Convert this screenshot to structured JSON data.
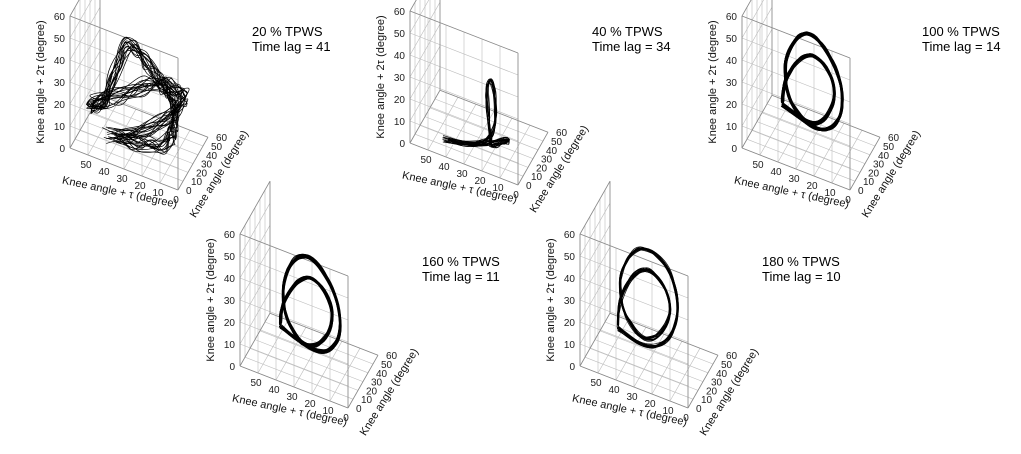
{
  "chart_data": [
    {
      "type": "line3d",
      "title": "20 % TPWS",
      "subtitle": "Time lag = 41",
      "xlabel": "Knee angle + τ (degree)",
      "ylabel": "Knee angle (degree)",
      "zlabel": "Knee angle + 2τ (degree)",
      "xlim": [
        0,
        60
      ],
      "ylim": [
        0,
        60
      ],
      "zlim": [
        0,
        60
      ],
      "xticks": [
        0,
        10,
        20,
        30,
        40,
        50
      ],
      "yticks": [
        0,
        10,
        20,
        30,
        40,
        50,
        60
      ],
      "zticks": [
        0,
        10,
        20,
        30,
        40,
        50,
        60
      ],
      "grid": true,
      "pattern": "irregular",
      "series": [
        {
          "x": [
            40,
            30,
            20,
            12,
            8,
            6,
            10,
            15,
            22,
            28,
            34,
            40,
            46,
            52,
            55,
            48,
            42,
            38,
            35,
            32,
            29,
            26,
            24,
            22,
            20,
            18,
            16,
            14,
            12,
            10,
            8,
            6,
            10,
            16,
            24,
            32,
            40
          ],
          "y": [
            5,
            8,
            14,
            20,
            28,
            35,
            42,
            48,
            52,
            54,
            52,
            46,
            38,
            28,
            18,
            10,
            6,
            5,
            8,
            14,
            22,
            30,
            38,
            44,
            48,
            52,
            50,
            44,
            36,
            26,
            16,
            8,
            4,
            3,
            4,
            5,
            5
          ],
          "z": [
            10,
            12,
            16,
            20,
            24,
            26,
            24,
            22,
            20,
            18,
            16,
            14,
            12,
            12,
            14,
            18,
            24,
            34,
            44,
            50,
            46,
            38,
            30,
            24,
            20,
            16,
            14,
            12,
            12,
            14,
            16,
            18,
            16,
            14,
            12,
            10,
            10
          ]
        }
      ]
    },
    {
      "type": "line3d",
      "title": "40 % TPWS",
      "subtitle": "Time lag = 34",
      "xlabel": "Knee angle + τ (degree)",
      "ylabel": "Knee angle (degree)",
      "zlabel": "Knee angle + 2τ (degree)",
      "xlim": [
        0,
        60
      ],
      "ylim": [
        0,
        60
      ],
      "zlim": [
        0,
        60
      ],
      "xticks": [
        0,
        10,
        20,
        30,
        40,
        50
      ],
      "yticks": [
        0,
        10,
        20,
        30,
        40,
        50,
        60
      ],
      "zticks": [
        0,
        10,
        20,
        30,
        40,
        50,
        60
      ],
      "grid": true,
      "pattern": "narrow",
      "series": [
        {
          "x": [
            42,
            36,
            30,
            24,
            20,
            18,
            17,
            18,
            20,
            23,
            26,
            24,
            22,
            20,
            19,
            18,
            16,
            14,
            12,
            10,
            12,
            16,
            22,
            30,
            38,
            42
          ],
          "y": [
            4,
            5,
            6,
            8,
            10,
            13,
            16,
            20,
            24,
            28,
            30,
            26,
            22,
            18,
            14,
            10,
            8,
            10,
            14,
            18,
            22,
            20,
            14,
            8,
            5,
            4
          ],
          "z": [
            6,
            6,
            7,
            8,
            10,
            12,
            16,
            22,
            28,
            30,
            24,
            16,
            10,
            8,
            7,
            8,
            9,
            10,
            10,
            9,
            8,
            7,
            6,
            6,
            6,
            6
          ]
        }
      ]
    },
    {
      "type": "line3d",
      "title": "100 % TPWS",
      "subtitle": "Time lag = 14",
      "xlabel": "Knee angle + τ (degree)",
      "ylabel": "Knee angle (degree)",
      "zlabel": "Knee angle + 2τ (degree)",
      "xlim": [
        0,
        60
      ],
      "ylim": [
        0,
        60
      ],
      "zlim": [
        0,
        60
      ],
      "xticks": [
        0,
        10,
        20,
        30,
        40,
        50
      ],
      "yticks": [
        0,
        10,
        20,
        30,
        40,
        50,
        60
      ],
      "zticks": [
        0,
        10,
        20,
        30,
        40,
        50,
        60
      ],
      "grid": true,
      "pattern": "loop",
      "series": [
        {
          "x": [
            40,
            30,
            22,
            16,
            12,
            10,
            12,
            18,
            26,
            34,
            40,
            44,
            46,
            44,
            40,
            34,
            28,
            22,
            18,
            16,
            18,
            24,
            32,
            38,
            42,
            44,
            42,
            40
          ],
          "y": [
            10,
            8,
            8,
            10,
            14,
            20,
            28,
            36,
            42,
            46,
            46,
            42,
            36,
            28,
            20,
            14,
            10,
            12,
            18,
            26,
            34,
            40,
            44,
            42,
            36,
            26,
            16,
            10
          ],
          "z": [
            22,
            20,
            18,
            18,
            20,
            24,
            30,
            36,
            40,
            42,
            40,
            36,
            30,
            26,
            22,
            20,
            18,
            18,
            20,
            24,
            28,
            32,
            34,
            32,
            28,
            24,
            22,
            22
          ]
        }
      ]
    },
    {
      "type": "line3d",
      "title": "160 % TPWS",
      "subtitle": "Time lag = 11",
      "xlabel": "Knee angle + τ (degree)",
      "ylabel": "Knee angle (degree)",
      "zlabel": "Knee angle + 2τ (degree)",
      "xlim": [
        0,
        60
      ],
      "ylim": [
        0,
        60
      ],
      "zlim": [
        0,
        60
      ],
      "xticks": [
        0,
        10,
        20,
        30,
        40,
        50
      ],
      "yticks": [
        0,
        10,
        20,
        30,
        40,
        50,
        60
      ],
      "zticks": [
        0,
        10,
        20,
        30,
        40,
        50,
        60
      ],
      "grid": true,
      "pattern": "loop",
      "series": [
        {
          "x": [
            40,
            30,
            22,
            16,
            12,
            10,
            12,
            18,
            26,
            34,
            40,
            44,
            46,
            44,
            40,
            34,
            28,
            22,
            18,
            16,
            18,
            24,
            32,
            38,
            42,
            44,
            42,
            40
          ],
          "y": [
            10,
            8,
            8,
            10,
            14,
            20,
            28,
            36,
            42,
            46,
            46,
            42,
            36,
            28,
            20,
            14,
            10,
            12,
            18,
            26,
            34,
            40,
            44,
            42,
            36,
            26,
            16,
            10
          ],
          "z": [
            20,
            18,
            16,
            16,
            18,
            22,
            28,
            34,
            38,
            40,
            38,
            34,
            28,
            24,
            20,
            18,
            16,
            16,
            18,
            22,
            26,
            30,
            32,
            30,
            26,
            22,
            20,
            20
          ]
        }
      ]
    },
    {
      "type": "line3d",
      "title": "180 % TPWS",
      "subtitle": "Time lag = 10",
      "xlabel": "Knee angle + τ (degree)",
      "ylabel": "Knee angle (degree)",
      "zlabel": "Knee angle + 2τ (degree)",
      "xlim": [
        0,
        60
      ],
      "ylim": [
        0,
        60
      ],
      "zlim": [
        0,
        60
      ],
      "xticks": [
        0,
        10,
        20,
        30,
        40,
        50
      ],
      "yticks": [
        0,
        10,
        20,
        30,
        40,
        50,
        60
      ],
      "zticks": [
        0,
        10,
        20,
        30,
        40,
        50,
        60
      ],
      "grid": true,
      "pattern": "loop",
      "series": [
        {
          "x": [
            42,
            32,
            24,
            18,
            14,
            12,
            14,
            20,
            28,
            36,
            42,
            46,
            48,
            46,
            42,
            36,
            30,
            24,
            20,
            18,
            20,
            26,
            34,
            40,
            44,
            46,
            44,
            42
          ],
          "y": [
            12,
            10,
            10,
            12,
            16,
            22,
            30,
            38,
            44,
            48,
            48,
            44,
            38,
            30,
            22,
            16,
            12,
            14,
            20,
            28,
            36,
            42,
            46,
            44,
            38,
            28,
            18,
            12
          ],
          "z": [
            18,
            16,
            16,
            18,
            22,
            28,
            34,
            40,
            42,
            42,
            40,
            36,
            30,
            26,
            22,
            20,
            18,
            18,
            20,
            24,
            28,
            32,
            34,
            32,
            28,
            22,
            18,
            18
          ]
        }
      ]
    }
  ]
}
